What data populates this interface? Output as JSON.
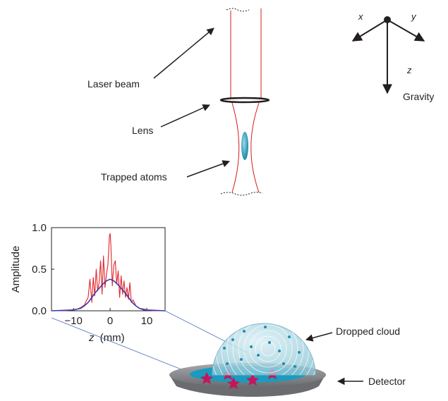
{
  "labels": {
    "laser_beam": "Laser beam",
    "lens": "Lens",
    "trapped_atoms": "Trapped atoms",
    "dropped_cloud": "Dropped cloud",
    "detector": "Detector"
  },
  "axes_triad": {
    "x": "x",
    "y": "y",
    "z": "z",
    "gravity": "Gravity"
  },
  "colors": {
    "laser": "#d7191c",
    "profile_measured": "#e2252b",
    "profile_fit": "#3b3bb0",
    "cloud": "#6fb8cc",
    "detector_surface": "#1a9bbf",
    "detector_rim": "#8d8e91",
    "stars": "#c2185b"
  },
  "chart_data": {
    "type": "line",
    "title": "",
    "xlabel_var": "z",
    "xlabel_unit": "(mm)",
    "ylabel": "Amplitude",
    "xlim": [
      -16,
      15
    ],
    "ylim": [
      0,
      1.0
    ],
    "xticks": [
      -10,
      0,
      10
    ],
    "xtick_labels": [
      "−10",
      "0",
      "10"
    ],
    "yticks": [
      0.0,
      0.5,
      1.0
    ],
    "ytick_labels": [
      "0.0",
      "0.5",
      "1.0"
    ],
    "series": [
      {
        "key": "measured",
        "color": "#e2252b",
        "x": [
          -16,
          -12,
          -9,
          -8,
          -7,
          -6.5,
          -6,
          -5.5,
          -5,
          -4.6,
          -4.2,
          -3.8,
          -3.4,
          -3,
          -2.6,
          -2.2,
          -1.8,
          -1.4,
          -1,
          -0.6,
          -0.2,
          0,
          0.2,
          0.6,
          1,
          1.4,
          1.8,
          2.2,
          2.6,
          3,
          3.4,
          3.8,
          4.2,
          4.6,
          5,
          5.4,
          5.8,
          6.3,
          7,
          8,
          9,
          12,
          15
        ],
        "y": [
          0.0,
          0.0,
          0.02,
          0.04,
          0.07,
          0.12,
          0.16,
          0.38,
          0.1,
          0.4,
          0.18,
          0.5,
          0.24,
          0.34,
          0.6,
          0.2,
          0.66,
          0.28,
          0.44,
          0.56,
          0.9,
          0.93,
          0.8,
          0.3,
          0.55,
          0.6,
          0.32,
          0.48,
          0.16,
          0.42,
          0.2,
          0.36,
          0.16,
          0.28,
          0.14,
          0.34,
          0.1,
          0.13,
          0.06,
          0.03,
          0.01,
          0.0,
          0.0
        ]
      },
      {
        "key": "fit",
        "color": "#3b3bb0",
        "x": [
          -16,
          -10,
          -9,
          -8,
          -7,
          -6,
          -5,
          -4,
          -3,
          -2,
          -1,
          0,
          1,
          2,
          3,
          4,
          5,
          6,
          7,
          8,
          9,
          10,
          15
        ],
        "y": [
          0.0,
          0.01,
          0.02,
          0.03,
          0.06,
          0.1,
          0.16,
          0.22,
          0.27,
          0.32,
          0.36,
          0.38,
          0.36,
          0.32,
          0.27,
          0.22,
          0.16,
          0.1,
          0.06,
          0.03,
          0.02,
          0.01,
          0.0
        ]
      }
    ]
  }
}
